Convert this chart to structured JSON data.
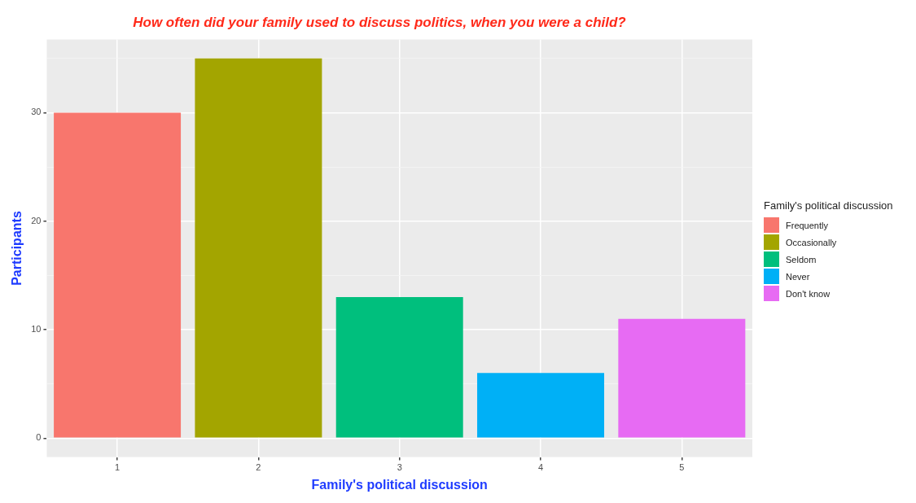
{
  "chart_data": {
    "type": "bar",
    "title": "How often did your family used to discuss politics, when you were a child?",
    "xlabel": "Family's political discussion",
    "ylabel": "Participants",
    "legend_title": "Family's political discussion",
    "categories": [
      "1",
      "2",
      "3",
      "4",
      "5"
    ],
    "series": [
      {
        "name": "Frequently",
        "color": "#f8766d",
        "values": [
          30,
          null,
          null,
          null,
          null
        ]
      },
      {
        "name": "Occasionally",
        "color": "#a3a500",
        "values": [
          null,
          35,
          null,
          null,
          null
        ]
      },
      {
        "name": "Seldom",
        "color": "#00bf7d",
        "values": [
          null,
          null,
          13,
          null,
          null
        ]
      },
      {
        "name": "Never",
        "color": "#00b0f6",
        "values": [
          null,
          null,
          null,
          6,
          null
        ]
      },
      {
        "name": "Don't know",
        "color": "#e76bf3",
        "values": [
          null,
          null,
          null,
          null,
          11
        ]
      }
    ],
    "ylim": [
      -1.75,
      36.75
    ],
    "yticks": [
      0,
      {
        "value": 5,
        "label": null
      },
      10,
      {
        "value": 15,
        "label": null
      },
      20,
      {
        "value": 25,
        "label": null
      },
      30,
      {
        "value": 35,
        "label": null
      }
    ],
    "grid": true,
    "legend": "right"
  }
}
